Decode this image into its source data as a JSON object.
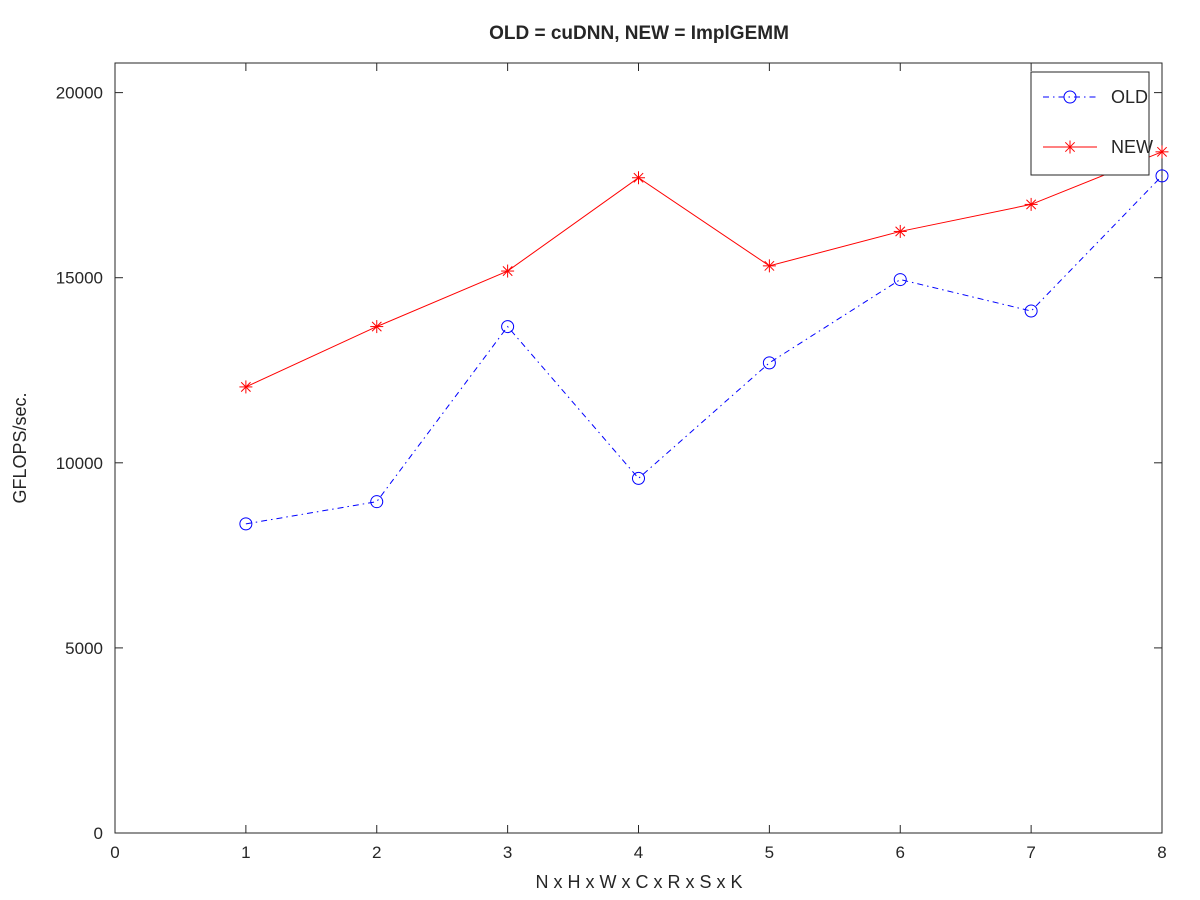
{
  "chart_data": {
    "type": "line",
    "title": "OLD = cuDNN, NEW = ImplGEMM",
    "xlabel": "N x H x W x C x R x S x K",
    "ylabel": "GFLOPS/sec.",
    "xlim": [
      0,
      8
    ],
    "ylim": [
      0,
      20800
    ],
    "xticks": [
      0,
      1,
      2,
      3,
      4,
      5,
      6,
      7,
      8
    ],
    "yticks": [
      0,
      5000,
      10000,
      15000,
      20000
    ],
    "x": [
      1,
      2,
      3,
      4,
      5,
      6,
      7,
      8
    ],
    "grid": false,
    "legend_position": "top-right",
    "series": [
      {
        "name": "OLD",
        "values": [
          8350,
          8950,
          13680,
          9580,
          12700,
          14950,
          14100,
          17750
        ],
        "color": "#0000ff",
        "line_style": "dash-dot",
        "marker": "circle"
      },
      {
        "name": "NEW",
        "values": [
          12050,
          13680,
          15180,
          17700,
          15320,
          16250,
          16980,
          18400
        ],
        "color": "#ff0000",
        "line_style": "solid",
        "marker": "asterisk"
      }
    ]
  }
}
